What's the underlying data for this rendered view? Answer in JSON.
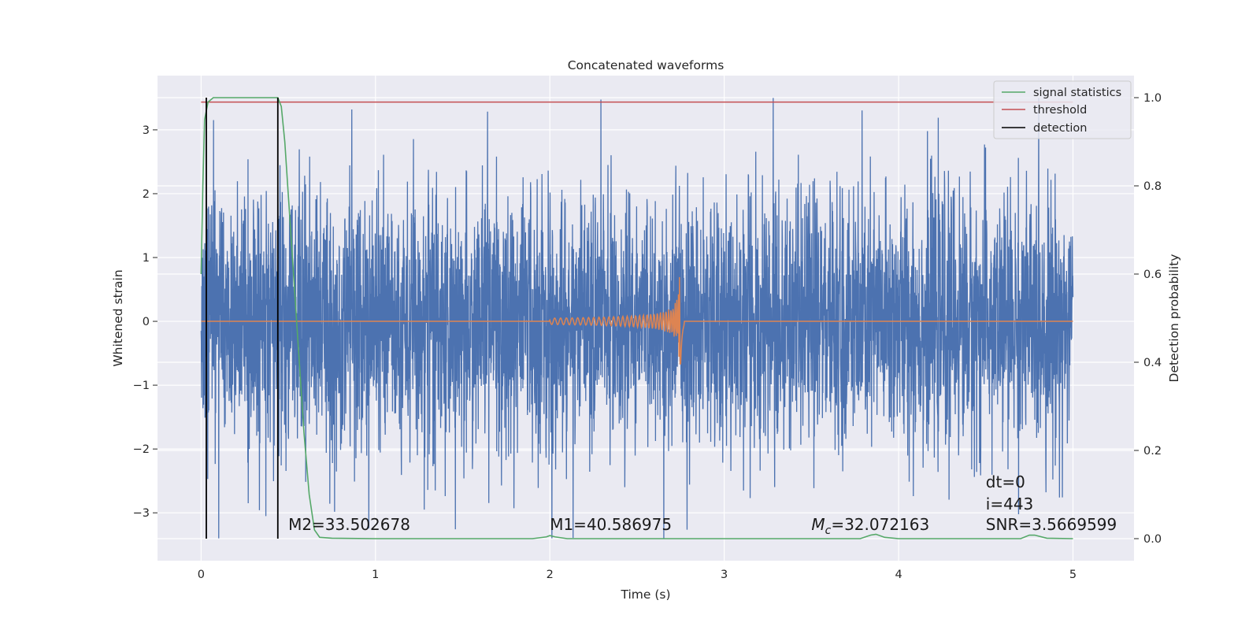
{
  "chart_data": {
    "type": "line",
    "title": "Concatenated waveforms",
    "xlabel": "Time (s)",
    "ylabel": "Whitened strain",
    "y2label": "Detection probability",
    "xlim": [
      -0.25,
      5.35
    ],
    "ylim": [
      -3.75,
      3.85
    ],
    "y2lim": [
      -0.05,
      1.05
    ],
    "x_ticks": [
      0,
      1,
      2,
      3,
      4,
      5
    ],
    "y_ticks": [
      -3,
      -2,
      -1,
      0,
      1,
      2,
      3
    ],
    "y_tick_labels": [
      "−3",
      "−2",
      "−1",
      "0",
      "1",
      "2",
      "3"
    ],
    "y2_ticks": [
      0.0,
      0.2,
      0.4,
      0.6,
      0.8,
      1.0
    ],
    "y2_tick_labels": [
      "0.0",
      "0.2",
      "0.4",
      "0.6",
      "0.8",
      "1.0"
    ],
    "grid": true,
    "legend_position": "top-right",
    "legend": [
      {
        "label": "signal statistics",
        "color": "#55a868"
      },
      {
        "label": "threshold",
        "color": "#c44e52"
      },
      {
        "label": "detection",
        "color": "#000000"
      }
    ],
    "series": [
      {
        "role": "strain",
        "color": "#4c72b0",
        "x_range": [
          0,
          5
        ],
        "typical_amplitude": 1.0,
        "peak_max": 3.5,
        "peak_min": -3.4
      },
      {
        "role": "injected waveform",
        "color": "#dd8452",
        "x_range": [
          0,
          5
        ],
        "chirp_start": 2.0,
        "merger_time": 2.75,
        "peak_amplitude": 0.72,
        "min_amplitude": -0.82
      },
      {
        "name": "signal statistics",
        "axis": "right",
        "color": "#55a868",
        "points": [
          [
            0.0,
            0.6
          ],
          [
            0.01,
            0.8
          ],
          [
            0.02,
            0.95
          ],
          [
            0.04,
            0.99
          ],
          [
            0.07,
            1.0
          ],
          [
            0.35,
            1.0
          ],
          [
            0.44,
            1.0
          ],
          [
            0.46,
            0.98
          ],
          [
            0.48,
            0.9
          ],
          [
            0.5,
            0.78
          ],
          [
            0.53,
            0.6
          ],
          [
            0.56,
            0.42
          ],
          [
            0.59,
            0.24
          ],
          [
            0.62,
            0.1
          ],
          [
            0.65,
            0.02
          ],
          [
            0.68,
            0.003
          ],
          [
            0.75,
            0.001
          ],
          [
            1.0,
            0.0
          ],
          [
            1.9,
            0.0
          ],
          [
            1.98,
            0.004
          ],
          [
            2.0,
            0.007
          ],
          [
            2.03,
            0.004
          ],
          [
            2.1,
            0.0
          ],
          [
            3.78,
            0.0
          ],
          [
            3.84,
            0.008
          ],
          [
            3.87,
            0.01
          ],
          [
            3.92,
            0.003
          ],
          [
            4.0,
            0.0
          ],
          [
            4.7,
            0.0
          ],
          [
            4.75,
            0.008
          ],
          [
            4.78,
            0.008
          ],
          [
            4.85,
            0.001
          ],
          [
            5.0,
            0.0
          ]
        ]
      },
      {
        "name": "threshold",
        "axis": "right",
        "color": "#c44e52",
        "points": [
          [
            0.0,
            0.99
          ],
          [
            5.0,
            0.99
          ]
        ]
      }
    ],
    "detections": [
      0.03,
      0.44
    ],
    "annotations": [
      {
        "text": "M2=33.502678",
        "x": 0.5,
        "y": -3.27
      },
      {
        "text": "M1=40.586975",
        "x": 2.0,
        "y": -3.27
      },
      {
        "text_main": "M",
        "text_sub": "c",
        "text_rest": "=32.072163",
        "x": 3.5,
        "y": -3.27
      },
      {
        "text": "SNR=3.5669599",
        "x": 4.5,
        "y": -3.27
      },
      {
        "text": "i=443",
        "x": 4.5,
        "y": -2.95
      },
      {
        "text": "dt=0",
        "x": 4.5,
        "y": -2.6
      }
    ]
  }
}
